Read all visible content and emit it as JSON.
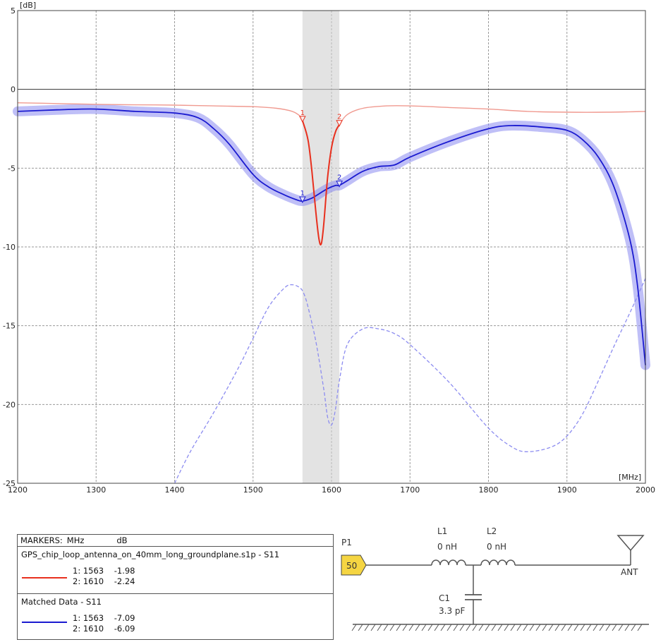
{
  "chart_data": {
    "type": "line",
    "x_unit": "[MHz]",
    "y_unit": "[dB]",
    "xlim": [
      1200,
      2000
    ],
    "ylim": [
      -25,
      5
    ],
    "x_ticks": [
      "1200",
      "1300",
      "1400",
      "1500",
      "1600",
      "1700",
      "1800",
      "1900",
      "2000"
    ],
    "y_ticks": [
      "5",
      "0",
      "-5",
      "-10",
      "-15",
      "-20",
      "-25"
    ],
    "highlight_band": [
      1563,
      1610
    ],
    "grid": true,
    "series": [
      {
        "name": "GPS_chip_loop_antenna_on_40mm_long_groundplane.s1p - S11",
        "color": "#e8301e",
        "x": [
          1200,
          1250,
          1300,
          1350,
          1400,
          1450,
          1500,
          1530,
          1550,
          1560,
          1563,
          1570,
          1575,
          1580,
          1584,
          1587,
          1590,
          1595,
          1600,
          1605,
          1610,
          1620,
          1640,
          1670,
          1700,
          1750,
          1800,
          1850,
          1900,
          1950,
          2000
        ],
        "y": [
          -0.85,
          -0.9,
          -0.95,
          -0.98,
          -1.0,
          -1.05,
          -1.1,
          -1.2,
          -1.4,
          -1.7,
          -1.98,
          -3.2,
          -5.2,
          -7.8,
          -9.5,
          -9.8,
          -8.6,
          -5.6,
          -3.7,
          -2.7,
          -2.24,
          -1.6,
          -1.2,
          -1.05,
          -1.05,
          -1.15,
          -1.25,
          -1.4,
          -1.45,
          -1.45,
          -1.4
        ]
      },
      {
        "name": "Matched Data - S11",
        "color": "#1a1ad0",
        "x": [
          1200,
          1250,
          1300,
          1350,
          1400,
          1430,
          1450,
          1470,
          1500,
          1520,
          1540,
          1555,
          1563,
          1575,
          1585,
          1595,
          1605,
          1610,
          1620,
          1640,
          1660,
          1680,
          1700,
          1750,
          1800,
          1830,
          1870,
          1900,
          1920,
          1940,
          1960,
          1980,
          1990,
          2000
        ],
        "y": [
          -1.4,
          -1.3,
          -1.25,
          -1.4,
          -1.5,
          -1.8,
          -2.5,
          -3.5,
          -5.4,
          -6.2,
          -6.7,
          -7.0,
          -7.09,
          -6.9,
          -6.6,
          -6.3,
          -6.1,
          -6.09,
          -5.8,
          -5.2,
          -4.9,
          -4.8,
          -4.3,
          -3.3,
          -2.5,
          -2.3,
          -2.4,
          -2.6,
          -3.2,
          -4.3,
          -6.2,
          -9.5,
          -12.5,
          -17.5
        ]
      },
      {
        "name": "Matched Data - S11 (dashed)",
        "color": "#8c8cf0",
        "x": [
          1400,
          1420,
          1450,
          1480,
          1500,
          1520,
          1540,
          1550,
          1560,
          1565,
          1570,
          1580,
          1590,
          1595,
          1600,
          1605,
          1610,
          1620,
          1640,
          1660,
          1680,
          1700,
          1750,
          1800,
          1830,
          1850,
          1880,
          1900,
          1920,
          1940,
          1960,
          1980,
          2000
        ],
        "y": [
          -25.0,
          -23.0,
          -20.5,
          -17.8,
          -15.8,
          -13.8,
          -12.6,
          -12.4,
          -12.6,
          -13.0,
          -13.8,
          -16.0,
          -19.0,
          -20.8,
          -21.3,
          -20.3,
          -18.5,
          -16.2,
          -15.2,
          -15.2,
          -15.5,
          -16.2,
          -18.6,
          -21.5,
          -22.7,
          -23.0,
          -22.7,
          -22.0,
          -20.6,
          -18.5,
          -16.3,
          -14.2,
          -12.0
        ]
      }
    ],
    "markers": [
      {
        "series": 0,
        "label": "1",
        "x": 1563,
        "y": -1.98
      },
      {
        "series": 0,
        "label": "2",
        "x": 1610,
        "y": -2.24
      },
      {
        "series": 1,
        "label": "1",
        "x": 1563,
        "y": -7.09
      },
      {
        "series": 1,
        "label": "2",
        "x": 1610,
        "y": -6.09
      }
    ]
  },
  "markers_panel": {
    "header_markers": "MARKERS:",
    "header_mhz": "MHz",
    "header_db": "dB",
    "traces": [
      {
        "name": "GPS_chip_loop_antenna_on_40mm_long_groundplane.s1p - S11",
        "color": "#e8301e",
        "row1": "1: 1563    -1.98",
        "row2": "2: 1610    -2.24"
      },
      {
        "name": "Matched Data - S11",
        "color": "#1a1ad0",
        "row1": "1: 1563    -7.09",
        "row2": "2: 1610    -6.09"
      }
    ]
  },
  "schematic": {
    "port_label": "P1",
    "port_value": "50",
    "l1_name": "L1",
    "l1_value": "0 nH",
    "l2_name": "L2",
    "l2_value": "0 nH",
    "c1_name": "C1",
    "c1_value": "3.3 pF",
    "ant_label": "ANT",
    "port_color": "#f5d542"
  }
}
